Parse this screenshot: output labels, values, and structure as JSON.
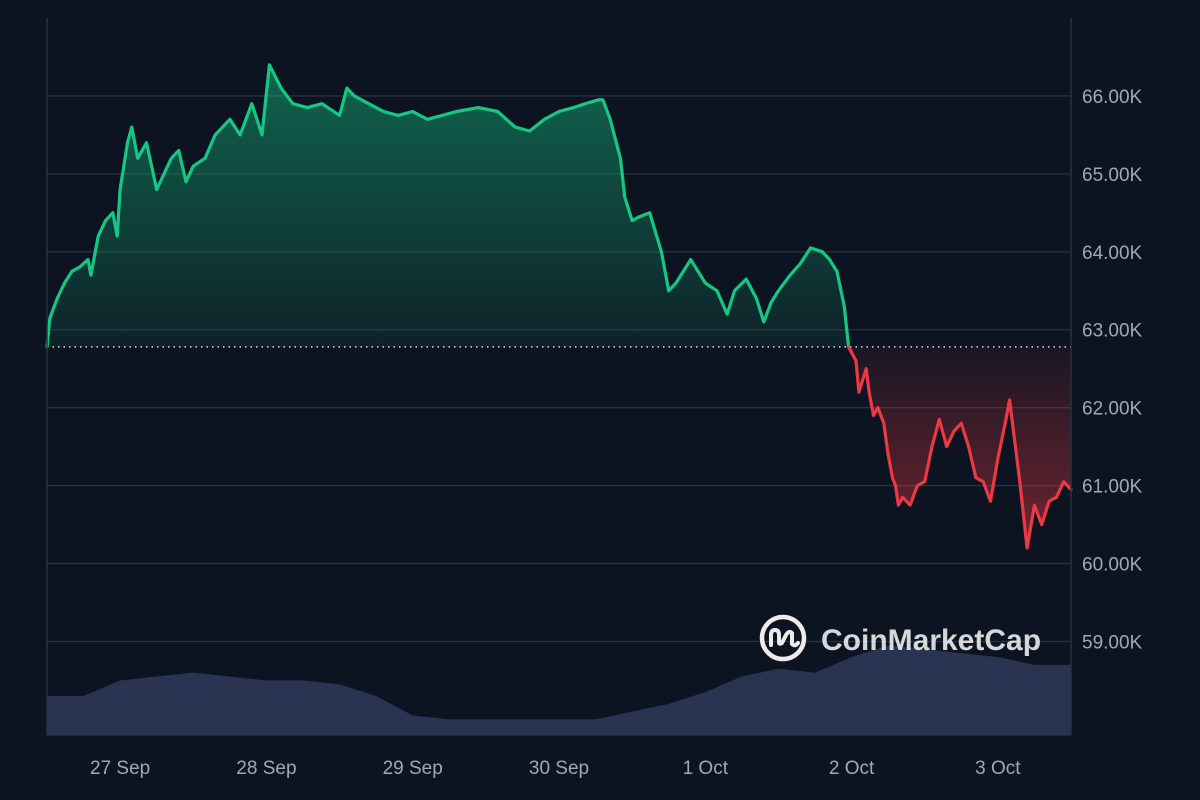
{
  "chart_data": {
    "type": "area",
    "title": "",
    "xlabel": "",
    "ylabel": "",
    "ylim": [
      57.8,
      67.0
    ],
    "baseline": 62.78,
    "x_ticks": [
      "27 Sep",
      "28 Sep",
      "29 Sep",
      "30 Sep",
      "1 Oct",
      "2 Oct",
      "3 Oct"
    ],
    "y_ticks": [
      {
        "value": 59.0,
        "label": "59.00K"
      },
      {
        "value": 60.0,
        "label": "60.00K"
      },
      {
        "value": 61.0,
        "label": "61.00K"
      },
      {
        "value": 62.0,
        "label": "62.00K"
      },
      {
        "value": 63.0,
        "label": "63.00K"
      },
      {
        "value": 64.0,
        "label": "64.00K"
      },
      {
        "value": 65.0,
        "label": "65.00K"
      },
      {
        "value": 66.0,
        "label": "66.00K"
      }
    ],
    "x_domain_days": [
      26.5,
      33.5
    ],
    "series": [
      {
        "values": [
          [
            26.5,
            62.78
          ],
          [
            26.52,
            63.15
          ],
          [
            26.57,
            63.4
          ],
          [
            26.62,
            63.6
          ],
          [
            26.67,
            63.75
          ],
          [
            26.72,
            63.8
          ],
          [
            26.78,
            63.9
          ],
          [
            26.8,
            63.7
          ],
          [
            26.85,
            64.2
          ],
          [
            26.9,
            64.4
          ],
          [
            26.95,
            64.5
          ],
          [
            26.98,
            64.2
          ],
          [
            27.0,
            64.8
          ],
          [
            27.05,
            65.4
          ],
          [
            27.08,
            65.6
          ],
          [
            27.12,
            65.2
          ],
          [
            27.18,
            65.4
          ],
          [
            27.25,
            64.8
          ],
          [
            27.35,
            65.2
          ],
          [
            27.4,
            65.3
          ],
          [
            27.45,
            64.9
          ],
          [
            27.5,
            65.1
          ],
          [
            27.58,
            65.2
          ],
          [
            27.65,
            65.5
          ],
          [
            27.75,
            65.7
          ],
          [
            27.82,
            65.5
          ],
          [
            27.9,
            65.9
          ],
          [
            27.97,
            65.5
          ],
          [
            28.02,
            66.4
          ],
          [
            28.1,
            66.1
          ],
          [
            28.18,
            65.9
          ],
          [
            28.28,
            65.85
          ],
          [
            28.38,
            65.9
          ],
          [
            28.5,
            65.75
          ],
          [
            28.55,
            66.1
          ],
          [
            28.6,
            66.0
          ],
          [
            28.7,
            65.9
          ],
          [
            28.8,
            65.8
          ],
          [
            28.9,
            65.75
          ],
          [
            29.0,
            65.8
          ],
          [
            29.1,
            65.7
          ],
          [
            29.2,
            65.75
          ],
          [
            29.3,
            65.8
          ],
          [
            29.45,
            65.85
          ],
          [
            29.58,
            65.8
          ],
          [
            29.7,
            65.6
          ],
          [
            29.8,
            65.55
          ],
          [
            29.9,
            65.7
          ],
          [
            30.0,
            65.8
          ],
          [
            30.1,
            65.85
          ],
          [
            30.18,
            65.9
          ],
          [
            30.27,
            65.95
          ],
          [
            30.3,
            65.95
          ],
          [
            30.35,
            65.7
          ],
          [
            30.42,
            65.2
          ],
          [
            30.45,
            64.7
          ],
          [
            30.5,
            64.4
          ],
          [
            30.55,
            64.45
          ],
          [
            30.62,
            64.5
          ],
          [
            30.7,
            64.0
          ],
          [
            30.75,
            63.5
          ],
          [
            30.8,
            63.6
          ],
          [
            30.9,
            63.9
          ],
          [
            31.0,
            63.6
          ],
          [
            31.08,
            63.5
          ],
          [
            31.15,
            63.2
          ],
          [
            31.2,
            63.5
          ],
          [
            31.28,
            63.65
          ],
          [
            31.35,
            63.4
          ],
          [
            31.4,
            63.1
          ],
          [
            31.45,
            63.35
          ],
          [
            31.5,
            63.5
          ],
          [
            31.58,
            63.7
          ],
          [
            31.65,
            63.85
          ],
          [
            31.72,
            64.05
          ],
          [
            31.8,
            64.0
          ],
          [
            31.85,
            63.9
          ],
          [
            31.9,
            63.75
          ],
          [
            31.95,
            63.3
          ],
          [
            31.98,
            62.78
          ]
        ]
      },
      {
        "values": [
          [
            31.98,
            62.78
          ],
          [
            32.03,
            62.6
          ],
          [
            32.05,
            62.2
          ],
          [
            32.1,
            62.5
          ],
          [
            32.12,
            62.2
          ],
          [
            32.15,
            61.9
          ],
          [
            32.18,
            62.0
          ],
          [
            32.22,
            61.8
          ],
          [
            32.25,
            61.4
          ],
          [
            32.28,
            61.1
          ],
          [
            32.3,
            61.0
          ],
          [
            32.32,
            60.75
          ],
          [
            32.35,
            60.85
          ],
          [
            32.4,
            60.75
          ],
          [
            32.45,
            61.0
          ],
          [
            32.5,
            61.05
          ],
          [
            32.55,
            61.5
          ],
          [
            32.6,
            61.85
          ],
          [
            32.65,
            61.5
          ],
          [
            32.7,
            61.7
          ],
          [
            32.75,
            61.8
          ],
          [
            32.8,
            61.5
          ],
          [
            32.85,
            61.1
          ],
          [
            32.9,
            61.05
          ],
          [
            32.95,
            60.8
          ],
          [
            33.0,
            61.35
          ],
          [
            33.05,
            61.8
          ],
          [
            33.08,
            62.1
          ],
          [
            33.12,
            61.5
          ],
          [
            33.15,
            61.05
          ],
          [
            33.2,
            60.2
          ],
          [
            33.25,
            60.75
          ],
          [
            33.3,
            60.5
          ],
          [
            33.35,
            60.8
          ],
          [
            33.4,
            60.85
          ],
          [
            33.45,
            61.05
          ],
          [
            33.5,
            60.95
          ]
        ]
      }
    ],
    "volume": [
      [
        26.5,
        58.3
      ],
      [
        26.75,
        58.3
      ],
      [
        27.0,
        58.5
      ],
      [
        27.25,
        58.55
      ],
      [
        27.5,
        58.6
      ],
      [
        27.75,
        58.55
      ],
      [
        28.0,
        58.5
      ],
      [
        28.25,
        58.5
      ],
      [
        28.5,
        58.45
      ],
      [
        28.75,
        58.3
      ],
      [
        29.0,
        58.05
      ],
      [
        29.25,
        58.0
      ],
      [
        29.5,
        58.0
      ],
      [
        29.75,
        58.0
      ],
      [
        30.0,
        58.0
      ],
      [
        30.25,
        58.0
      ],
      [
        30.5,
        58.1
      ],
      [
        30.75,
        58.2
      ],
      [
        31.0,
        58.35
      ],
      [
        31.25,
        58.55
      ],
      [
        31.5,
        58.65
      ],
      [
        31.75,
        58.6
      ],
      [
        32.0,
        58.8
      ],
      [
        32.25,
        58.95
      ],
      [
        32.5,
        58.9
      ],
      [
        32.75,
        58.85
      ],
      [
        33.0,
        58.8
      ],
      [
        33.25,
        58.7
      ],
      [
        33.5,
        58.7
      ]
    ],
    "grid": true,
    "colors": {
      "background": "#0d1421",
      "grid": "#2a3142",
      "up_line": "#16c784",
      "down_line": "#ea3943",
      "volume": "#2a3452",
      "baseline": "#ffffff",
      "tick_text": "#a1a7bb"
    },
    "watermark": {
      "text": "CoinMarketCap",
      "icon": "coinmarketcap-logo-icon"
    }
  }
}
